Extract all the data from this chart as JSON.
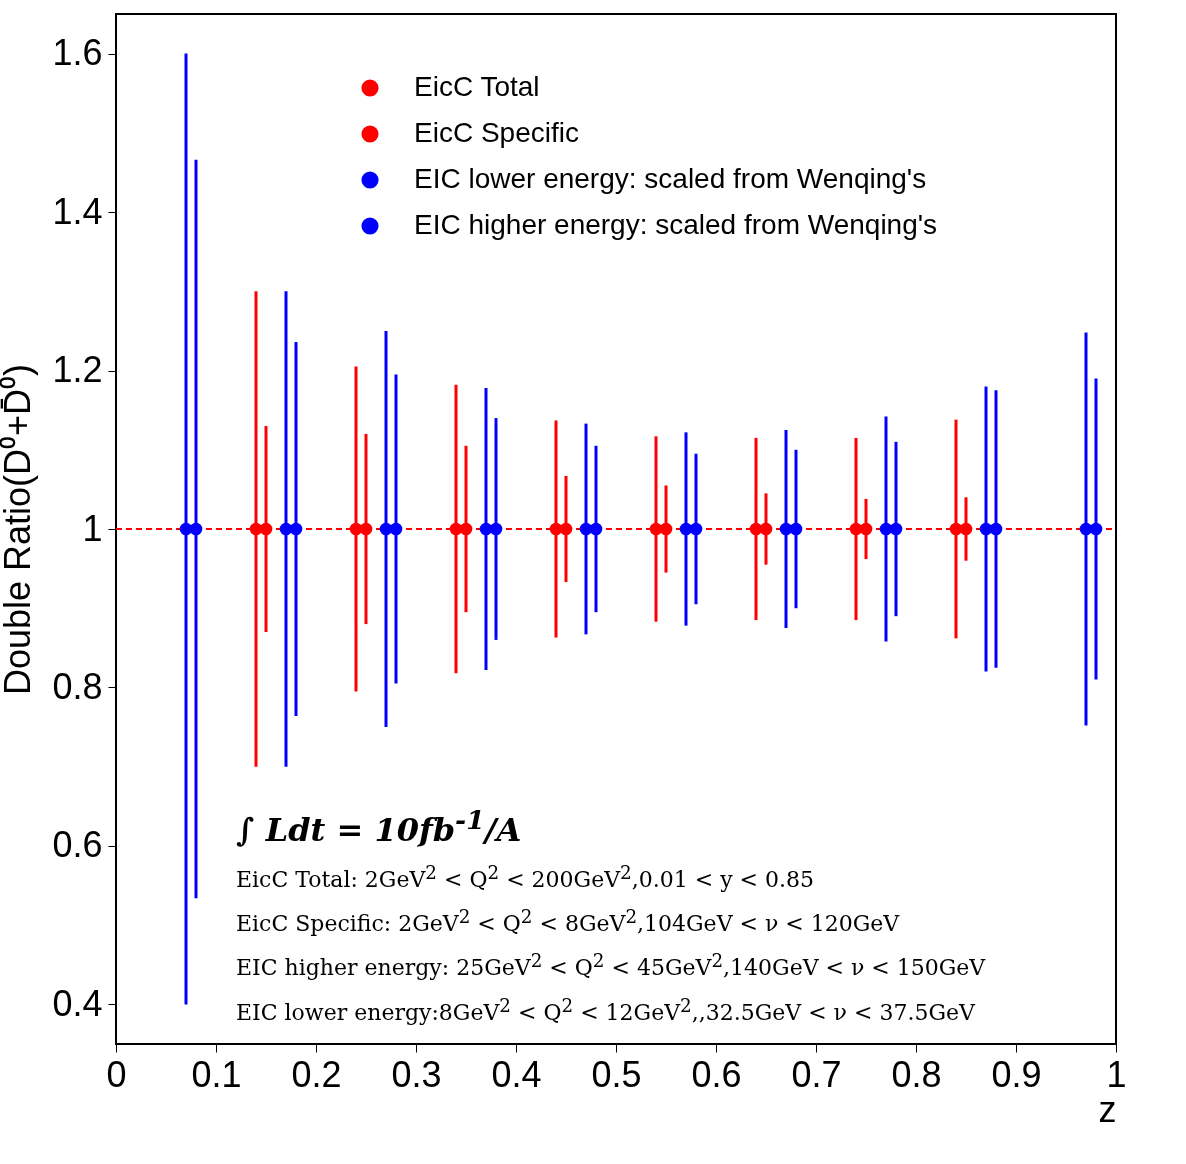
{
  "chart_data": {
    "type": "scatter",
    "xlabel": "z",
    "ylabel": "Double Ratio(D⁰+D̄⁰)",
    "xlim": [
      0,
      1
    ],
    "ylim": [
      0.35,
      1.65
    ],
    "xticks": [
      0,
      0.1,
      0.2,
      0.3,
      0.4,
      0.5,
      0.6,
      0.7,
      0.8,
      0.9,
      1
    ],
    "yticks": [
      0.4,
      0.6,
      0.8,
      1,
      1.2,
      1.4,
      1.6
    ],
    "marker": "circle",
    "legend": "top right",
    "grid": false,
    "series": [
      {
        "name": "EicC Total",
        "color": "#ff0000",
        "x": [
          0.15,
          0.25,
          0.35,
          0.45,
          0.55,
          0.65,
          0.75,
          0.85
        ],
        "values": [
          1,
          1,
          1,
          1,
          1,
          1,
          1,
          1
        ],
        "errors": [
          0.13,
          0.12,
          0.105,
          0.067,
          0.055,
          0.045,
          0.038,
          0.04
        ]
      },
      {
        "name": "EicC Specific",
        "color": "#ff0000",
        "x": [
          0.14,
          0.24,
          0.34,
          0.44,
          0.54,
          0.64,
          0.74,
          0.84
        ],
        "values": [
          1,
          1,
          1,
          1,
          1,
          1,
          1,
          1
        ],
        "errors": [
          0.3,
          0.205,
          0.182,
          0.137,
          0.117,
          0.115,
          0.115,
          0.138
        ]
      },
      {
        "name": "EIC lower energy: scaled from Wenqing's",
        "color": "#0000ff",
        "x": [
          0.08,
          0.18,
          0.28,
          0.38,
          0.48,
          0.58,
          0.68,
          0.78,
          0.88,
          0.98
        ],
        "values": [
          1,
          1,
          1,
          1,
          1,
          1,
          1,
          1,
          1,
          1
        ],
        "errors": [
          0.466,
          0.236,
          0.195,
          0.14,
          0.105,
          0.095,
          0.1,
          0.11,
          0.175,
          0.19
        ]
      },
      {
        "name": "EIC higher energy: scaled from Wenqing's",
        "color": "#0000ff",
        "x": [
          0.07,
          0.17,
          0.27,
          0.37,
          0.47,
          0.57,
          0.67,
          0.77,
          0.87,
          0.97
        ],
        "values": [
          1,
          1,
          1,
          1,
          1,
          1,
          1,
          1,
          1,
          1
        ],
        "errors": [
          0.6,
          0.3,
          0.25,
          0.178,
          0.133,
          0.122,
          0.125,
          0.142,
          0.18,
          0.248
        ]
      }
    ],
    "ref_lines": [
      {
        "axis": "y",
        "value": 1,
        "color": "#ff0000",
        "line_style": "dashed"
      }
    ],
    "annotations": [
      "∫ Ldt = 10fb$^{-1}$/A",
      "EicC Total: 2GeV$^{2}$ < Q$^{2}$ < 200GeV$^{2}$,0.01 < y < 0.85",
      "EicC Specific: 2GeV$^{2}$ < Q$^{2}$ < 8GeV$^{2}$,104GeV < ν < 120GeV",
      "EIC higher energy: 25GeV$^{2}$ < Q$^{2}$ < 45GeV$^{2}$,140GeV < ν < 150GeV",
      "EIC lower energy:8GeV$^{2}$ < Q$^{2}$ < 12GeV$^{2}$,,32.5GeV < ν < 37.5GeV"
    ]
  }
}
